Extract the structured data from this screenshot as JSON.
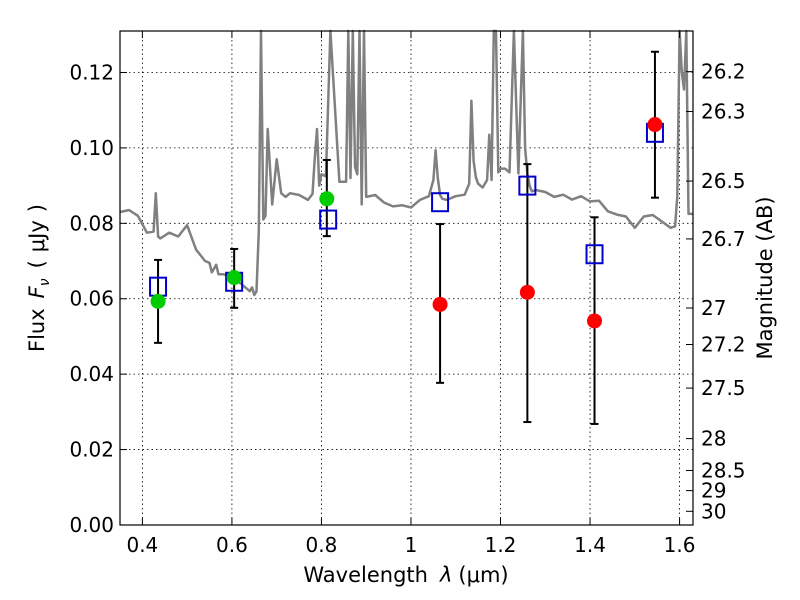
{
  "chart_data": {
    "type": "scatter",
    "xlabel_prefix": "Wavelength",
    "xlabel_symbol": "λ",
    "xlabel_unit_open": "(",
    "xlabel_unit": "μm",
    "xlabel_unit_close": ")",
    "ylabel_prefix": "Flux",
    "ylabel_symbol": "F",
    "ylabel_subscript": "ν",
    "ylabel_unit_open": "(",
    "ylabel_unit": "μJy",
    "ylabel_unit_close": ")",
    "y2label": "Magnitude (AB)",
    "xlim": [
      0.35,
      1.63
    ],
    "ylim": [
      0.0,
      0.131
    ],
    "x_ticks": [
      0.4,
      0.6,
      0.8,
      1.0,
      1.2,
      1.4,
      1.6
    ],
    "x_tick_labels": [
      "0.4",
      "0.6",
      "0.8",
      "1",
      "1.2",
      "1.4",
      "1.6"
    ],
    "y_ticks": [
      0.0,
      0.02,
      0.04,
      0.06,
      0.08,
      0.1,
      0.12
    ],
    "y_tick_labels": [
      "0.00",
      "0.02",
      "0.04",
      "0.06",
      "0.08",
      "0.10",
      "0.12"
    ],
    "mag_ticks": [
      26.2,
      26.3,
      26.5,
      26.7,
      27,
      27.2,
      27.5,
      28,
      28.5,
      29,
      30
    ],
    "mag_tick_labels": [
      "26.2",
      "26.3",
      "26.5",
      "26.7",
      "27",
      "27.2",
      "27.5",
      "28",
      "28.5",
      "29",
      "30"
    ],
    "grid": true,
    "series": [
      {
        "name": "detections-green",
        "color": "#00cc00",
        "points": [
          {
            "x": 0.435,
            "y": 0.0593,
            "yerr_low": 0.0483,
            "yerr_high": 0.0703
          },
          {
            "x": 0.605,
            "y": 0.0656,
            "yerr_low": 0.0576,
            "yerr_high": 0.0732
          },
          {
            "x": 0.812,
            "y": 0.0865,
            "yerr_low": 0.0766,
            "yerr_high": 0.0968
          }
        ]
      },
      {
        "name": "detections-red",
        "color": "#ff0000",
        "points": [
          {
            "x": 1.065,
            "y": 0.0585,
            "yerr_low": 0.0377,
            "yerr_high": 0.0798
          },
          {
            "x": 1.26,
            "y": 0.0617,
            "yerr_low": 0.0273,
            "yerr_high": 0.0957
          },
          {
            "x": 1.41,
            "y": 0.0541,
            "yerr_low": 0.0268,
            "yerr_high": 0.0816
          },
          {
            "x": 1.545,
            "y": 0.1062,
            "yerr_low": 0.0868,
            "yerr_high": 0.1255
          }
        ]
      },
      {
        "name": "model-photometry",
        "color": "#0000cc",
        "marker": "open-square",
        "points": [
          {
            "x": 0.435,
            "y": 0.0632
          },
          {
            "x": 0.605,
            "y": 0.0645
          },
          {
            "x": 0.815,
            "y": 0.081
          },
          {
            "x": 1.065,
            "y": 0.0856
          },
          {
            "x": 1.26,
            "y": 0.09
          },
          {
            "x": 1.41,
            "y": 0.0718
          },
          {
            "x": 1.545,
            "y": 0.104
          }
        ]
      },
      {
        "name": "template-spectrum",
        "color": "#808080",
        "type": "line",
        "x": [
          0.35,
          0.37,
          0.39,
          0.41,
          0.425,
          0.43,
          0.435,
          0.44,
          0.46,
          0.48,
          0.5,
          0.52,
          0.54,
          0.55,
          0.555,
          0.56,
          0.565,
          0.57,
          0.58,
          0.6,
          0.62,
          0.64,
          0.645,
          0.65,
          0.655,
          0.66,
          0.665,
          0.67,
          0.675,
          0.68,
          0.69,
          0.7,
          0.71,
          0.72,
          0.73,
          0.75,
          0.77,
          0.78,
          0.785,
          0.79,
          0.795,
          0.8,
          0.81,
          0.82,
          0.84,
          0.855,
          0.86,
          0.865,
          0.87,
          0.875,
          0.88,
          0.885,
          0.89,
          0.895,
          0.9,
          0.92,
          0.94,
          0.96,
          0.98,
          1.0,
          1.02,
          1.04,
          1.05,
          1.055,
          1.06,
          1.065,
          1.07,
          1.08,
          1.1,
          1.12,
          1.13,
          1.135,
          1.14,
          1.145,
          1.15,
          1.16,
          1.17,
          1.175,
          1.18,
          1.185,
          1.19,
          1.195,
          1.2,
          1.21,
          1.22,
          1.23,
          1.24,
          1.25,
          1.255,
          1.26,
          1.265,
          1.27,
          1.28,
          1.3,
          1.32,
          1.34,
          1.36,
          1.38,
          1.4,
          1.42,
          1.44,
          1.46,
          1.48,
          1.5,
          1.52,
          1.54,
          1.56,
          1.58,
          1.59,
          1.595,
          1.6,
          1.605,
          1.61,
          1.615,
          1.62,
          1.63
        ],
        "y": [
          0.083,
          0.0835,
          0.082,
          0.0775,
          0.0778,
          0.088,
          0.0765,
          0.076,
          0.0775,
          0.0765,
          0.0795,
          0.073,
          0.07,
          0.0695,
          0.067,
          0.068,
          0.069,
          0.0665,
          0.0665,
          0.066,
          0.064,
          0.062,
          0.063,
          0.061,
          0.062,
          0.078,
          0.131,
          0.081,
          0.082,
          0.105,
          0.085,
          0.097,
          0.088,
          0.087,
          0.088,
          0.0875,
          0.0862,
          0.0878,
          0.097,
          0.105,
          0.09,
          0.093,
          0.0925,
          0.131,
          0.091,
          0.091,
          0.131,
          0.092,
          0.131,
          0.095,
          0.093,
          0.131,
          0.085,
          0.131,
          0.087,
          0.0875,
          0.0855,
          0.0845,
          0.0848,
          0.0842,
          0.0862,
          0.0872,
          0.0915,
          0.0994,
          0.092,
          0.0875,
          0.0865,
          0.0862,
          0.0872,
          0.0876,
          0.0905,
          0.1125,
          0.0965,
          0.0922,
          0.0905,
          0.0895,
          0.0915,
          0.1035,
          0.0915,
          0.131,
          0.131,
          0.0935,
          0.0945,
          0.0945,
          0.0935,
          0.131,
          0.0932,
          0.131,
          0.1,
          0.093,
          0.09,
          0.0885,
          0.0888,
          0.0883,
          0.087,
          0.0876,
          0.0863,
          0.0872,
          0.0858,
          0.086,
          0.0832,
          0.0823,
          0.0818,
          0.0788,
          0.0818,
          0.0822,
          0.0805,
          0.0788,
          0.0792,
          0.0872,
          0.131,
          0.12,
          0.1155,
          0.131,
          0.0825,
          0.0825
        ]
      }
    ]
  }
}
